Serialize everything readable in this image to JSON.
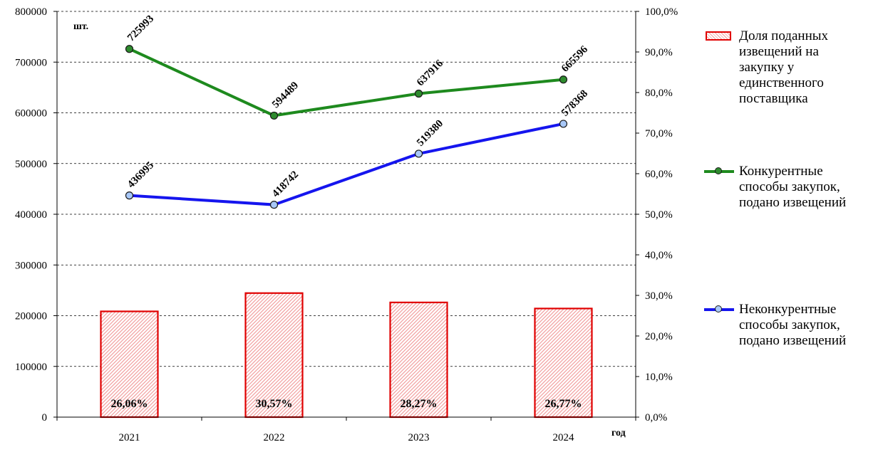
{
  "chart_data": {
    "type": "bar+line",
    "categories": [
      "2021",
      "2022",
      "2023",
      "2024"
    ],
    "xlabel": "год",
    "ylabel_left": "шт.",
    "ylim_left": [
      0,
      800000
    ],
    "yticks_left": [
      "0",
      "100000",
      "200000",
      "300000",
      "400000",
      "500000",
      "600000",
      "700000",
      "800000"
    ],
    "ylim_right": [
      0,
      100
    ],
    "yticks_right": [
      "0,0%",
      "10,0%",
      "20,0%",
      "30,0%",
      "40,0%",
      "50,0%",
      "60,0%",
      "70,0%",
      "80,0%",
      "90,0%",
      "100,0%"
    ],
    "grid": "horizontal dashed",
    "legend_position": "right",
    "bars": {
      "name": "Доля поданных извещений на закупку у единственного поставщика",
      "axis": "right",
      "values": [
        26.06,
        30.57,
        28.27,
        26.77
      ],
      "labels": [
        "26,06%",
        "30,57%",
        "28,27%",
        "26,77%"
      ],
      "color": "#e00000"
    },
    "series": [
      {
        "name": "Конкурентные способы закупок, подано извещений",
        "axis": "left",
        "values": [
          725993,
          594489,
          637916,
          665596
        ],
        "labels": [
          "725993",
          "594489",
          "637916",
          "665596"
        ],
        "color": "#1e8a1e"
      },
      {
        "name": "Неконкурентные способы закупок, подано извещений",
        "axis": "left",
        "values": [
          436995,
          418742,
          519380,
          578368
        ],
        "labels": [
          "436995",
          "418742",
          "519380",
          "578368"
        ],
        "color": "#1515ee"
      }
    ]
  },
  "legend": [
    {
      "name_lines": [
        "Доля поданных",
        "извещений на",
        "закупку у",
        "единственного",
        "поставщика"
      ]
    },
    {
      "name_lines": [
        "Конкурентные",
        "способы закупок,",
        "подано извещений"
      ]
    },
    {
      "name_lines": [
        "Неконкурентные",
        "способы закупок,",
        "подано извещений"
      ]
    }
  ]
}
